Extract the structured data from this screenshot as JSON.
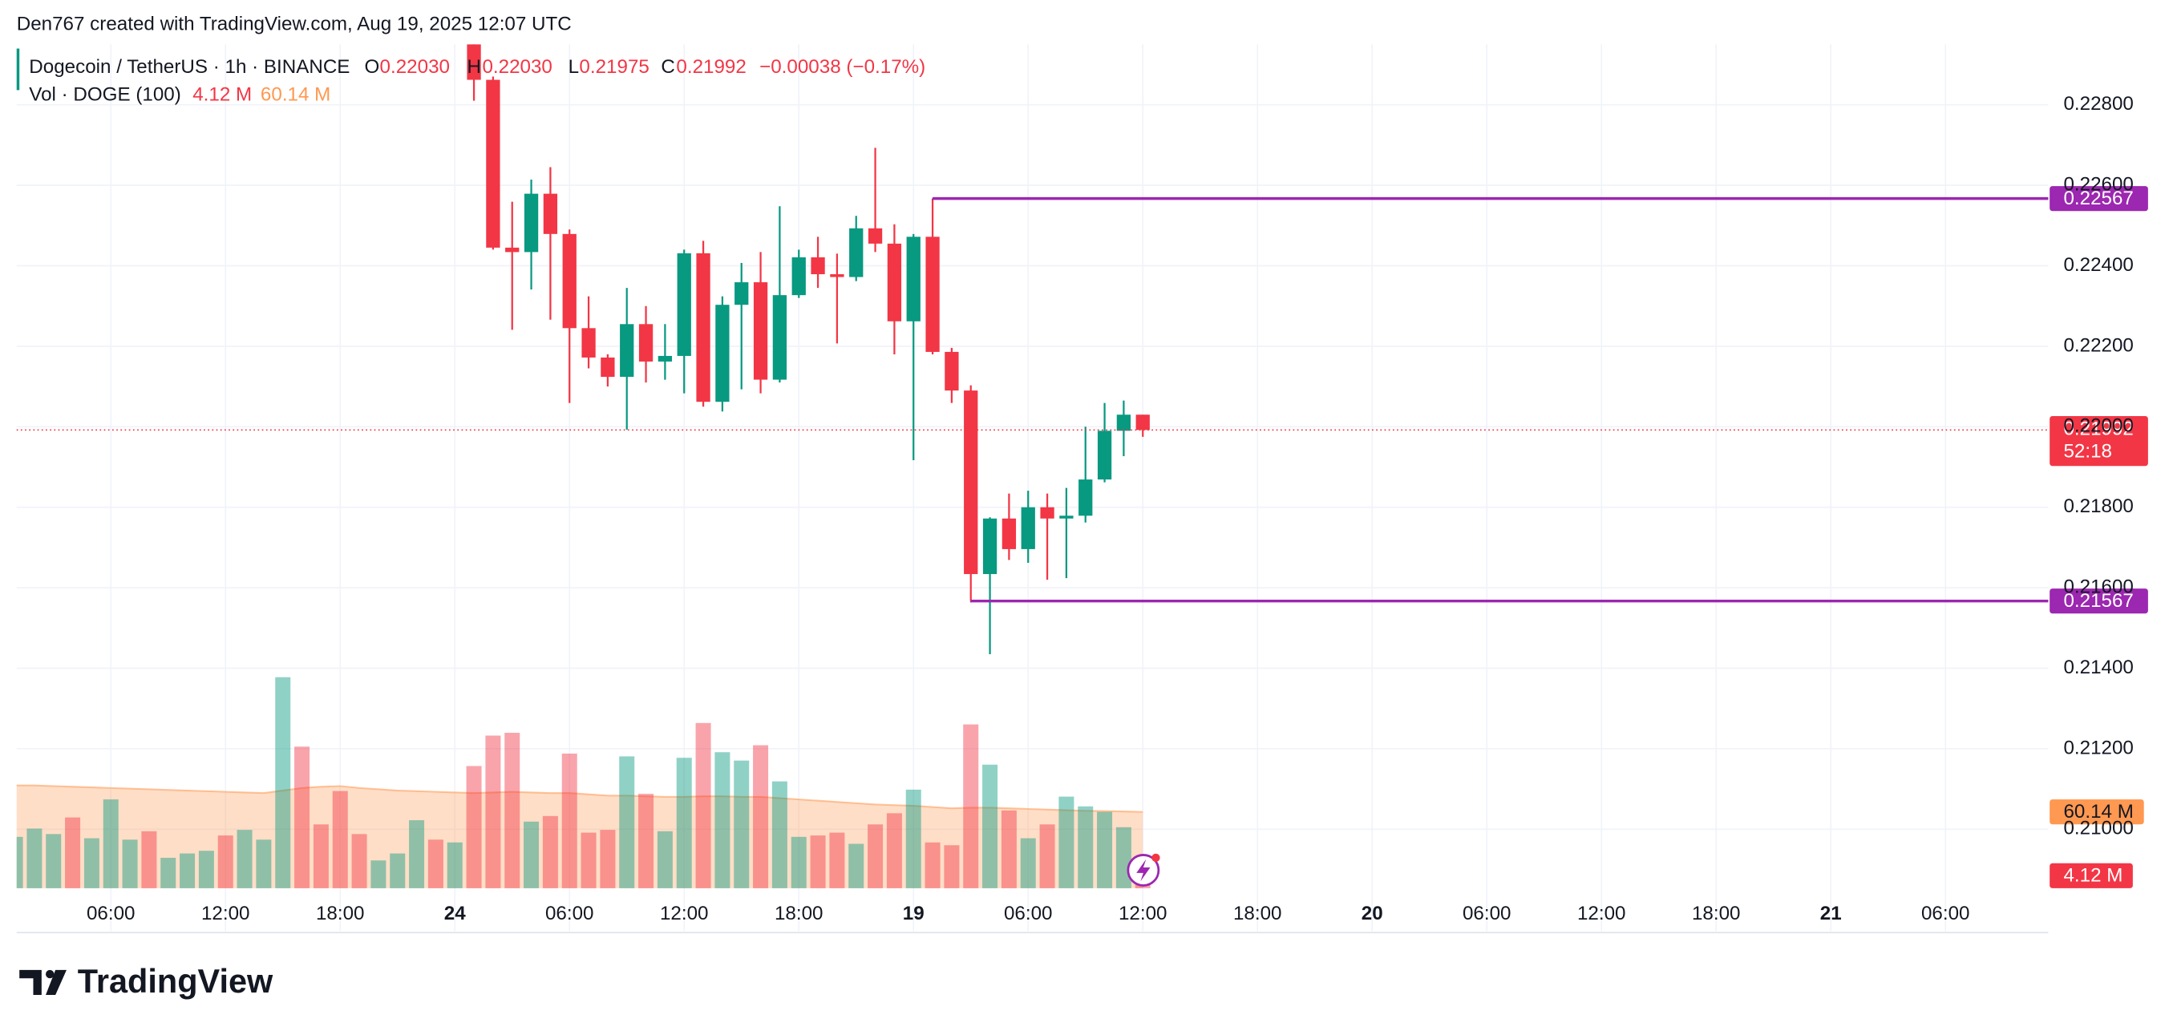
{
  "header": {
    "credit": "Den767 created with TradingView.com, Aug 19, 2025 12:07 UTC"
  },
  "chart_data": {
    "type": "candlestick",
    "symbol": "Dogecoin / TetherUS · 1h · BINANCE",
    "legend": {
      "o_label": "O",
      "o": "0.22030",
      "h_label": "H",
      "h": "0.22030",
      "l_label": "L",
      "l": "0.21975",
      "c_label": "C",
      "c": "0.21992",
      "change": "−0.00038 (−0.17%)"
    },
    "x": [
      25,
      26,
      27,
      28,
      29,
      30,
      31,
      32,
      33,
      34,
      35,
      36,
      37,
      38,
      39,
      40,
      41,
      42,
      43,
      44,
      45,
      46,
      47,
      48,
      49,
      50,
      51,
      52,
      53,
      54,
      55,
      56,
      57,
      58,
      59,
      60
    ],
    "open": [
      0.23,
      0.22862,
      0.22445,
      0.22434,
      0.22579,
      0.22479,
      0.22245,
      0.22172,
      0.22124,
      0.22255,
      0.22162,
      0.22176,
      0.22431,
      0.22062,
      0.22303,
      0.22359,
      0.22117,
      0.22327,
      0.22421,
      0.22379,
      0.22372,
      0.22493,
      0.22455,
      0.22262,
      0.22472,
      0.22186,
      0.2209,
      0.21634,
      0.21772,
      0.21696,
      0.218,
      0.21772,
      0.21779,
      0.21869,
      0.2199,
      0.2203
    ],
    "high": [
      0.2302,
      0.2287,
      0.22559,
      0.22614,
      0.22645,
      0.2249,
      0.22324,
      0.2218,
      0.22345,
      0.223,
      0.22255,
      0.2244,
      0.22462,
      0.22324,
      0.22407,
      0.22434,
      0.22548,
      0.2244,
      0.22472,
      0.2243,
      0.22524,
      0.22693,
      0.22503,
      0.22479,
      0.22567,
      0.22196,
      0.22103,
      0.21775,
      0.21834,
      0.21841,
      0.21834,
      0.21848,
      0.22,
      0.22059,
      0.22065,
      0.2203
    ],
    "low": [
      0.2281,
      0.2244,
      0.22241,
      0.22341,
      0.22266,
      0.22059,
      0.22145,
      0.221,
      0.21993,
      0.2211,
      0.22117,
      0.22083,
      0.2205,
      0.22038,
      0.22093,
      0.22083,
      0.2211,
      0.2232,
      0.22345,
      0.22207,
      0.22362,
      0.22434,
      0.2218,
      0.21917,
      0.2218,
      0.22059,
      0.21567,
      0.21435,
      0.21669,
      0.21662,
      0.2162,
      0.21624,
      0.21762,
      0.21862,
      0.21927,
      0.21975
    ],
    "close": [
      0.22862,
      0.22445,
      0.22434,
      0.22579,
      0.22479,
      0.22245,
      0.22172,
      0.22124,
      0.22255,
      0.22162,
      0.22176,
      0.22431,
      0.22062,
      0.22303,
      0.22359,
      0.22117,
      0.22327,
      0.22421,
      0.22379,
      0.22372,
      0.22493,
      0.22455,
      0.22262,
      0.22472,
      0.22186,
      0.2209,
      0.21634,
      0.21772,
      0.21696,
      0.218,
      0.21772,
      0.21779,
      0.21869,
      0.2199,
      0.2203,
      0.21992
    ],
    "up_color": "#089981",
    "down_color": "#f23645",
    "xlim": [
      1.07,
      107.38
    ],
    "xticks": [
      {
        "value": 6,
        "label": "06:00"
      },
      {
        "value": 12,
        "label": "12:00"
      },
      {
        "value": 18,
        "label": "18:00"
      },
      24,
      {
        "value": 30,
        "label": "06:00"
      },
      {
        "value": 36,
        "label": "12:00"
      },
      {
        "value": 42,
        "label": "18:00"
      },
      {
        "value": 48,
        "label": "19"
      },
      {
        "value": 54,
        "label": "06:00"
      },
      {
        "value": 60,
        "label": "12:00"
      },
      {
        "value": 66,
        "label": "18:00"
      },
      {
        "value": 72,
        "label": "20"
      },
      {
        "value": 78,
        "label": "06:00"
      },
      {
        "value": 84,
        "label": "12:00"
      },
      {
        "value": 90,
        "label": "18:00"
      },
      {
        "value": 96,
        "label": "21"
      },
      {
        "value": 102,
        "label": "06:00"
      }
    ],
    "ylim": [
      0.2085,
      0.2295
    ],
    "yticks": [
      {
        "value": 0.228,
        "label": "0.22800"
      },
      {
        "value": 0.226,
        "label": "0.22600"
      },
      {
        "value": 0.224,
        "label": "0.22400"
      },
      {
        "value": 0.222,
        "label": "0.22200"
      },
      {
        "value": 0.22,
        "label": "0.22000"
      },
      {
        "value": 0.218,
        "label": "0.21800"
      },
      {
        "value": 0.216,
        "label": "0.21600"
      },
      {
        "value": 0.214,
        "label": "0.21400"
      },
      {
        "value": 0.212,
        "label": "0.21200"
      },
      {
        "value": 0.21,
        "label": "0.21000"
      }
    ],
    "grid": true,
    "volume": {
      "name": "Vol · DOGE (100)",
      "x": [
        1,
        2,
        3,
        4,
        5,
        6,
        7,
        8,
        9,
        10,
        11,
        12,
        13,
        14,
        15,
        16,
        17,
        18,
        19,
        20,
        21,
        22,
        23,
        24,
        25,
        26,
        27,
        28,
        29,
        30,
        31,
        32,
        33,
        34,
        35,
        36,
        37,
        38,
        39,
        40,
        41,
        42,
        43,
        44,
        45,
        46,
        47,
        48,
        49,
        50,
        51,
        52,
        53,
        54,
        55,
        56,
        57,
        58,
        59,
        60
      ],
      "values": [
        40.5,
        47,
        42.7,
        55.8,
        39.4,
        70,
        38.3,
        44.9,
        24,
        27.4,
        29.5,
        41.6,
        46,
        38.3,
        166.3,
        111.6,
        50.3,
        76.6,
        42.7,
        21.9,
        27.4,
        53.6,
        38.3,
        36.1,
        96.3,
        120.3,
        122.5,
        52.5,
        56.9,
        106.1,
        43.8,
        46,
        103.9,
        74.4,
        44.9,
        102.8,
        130.2,
        107.2,
        100.6,
        112.7,
        84.2,
        40.5,
        41.6,
        43.8,
        35,
        50.3,
        59.1,
        77.7,
        36.1,
        33.9,
        129.1,
        97.4,
        61.3,
        39.4,
        50.3,
        72.2,
        64.5,
        60.2,
        48.1,
        4.12
      ],
      "value_label": "4.12 M",
      "directions": [
        "up",
        "up",
        "up",
        "down",
        "up",
        "up",
        "up",
        "down",
        "up",
        "up",
        "up",
        "down",
        "up",
        "up",
        "up",
        "down",
        "down",
        "down",
        "down",
        "up",
        "up",
        "up",
        "down",
        "up",
        "down",
        "down",
        "down",
        "up",
        "down",
        "down",
        "down",
        "down",
        "up",
        "down",
        "up",
        "up",
        "down",
        "up",
        "up",
        "down",
        "up",
        "up",
        "down",
        "down",
        "up",
        "down",
        "down",
        "up",
        "down",
        "down",
        "down",
        "up",
        "down",
        "up",
        "down",
        "up",
        "up",
        "up",
        "up",
        "down"
      ],
      "ma": [
        81,
        81,
        80.5,
        80,
        79.5,
        79,
        78.5,
        78,
        77.5,
        77,
        76.5,
        76,
        75.5,
        75,
        77,
        79,
        80,
        80.5,
        79,
        78,
        77,
        76.5,
        76,
        75.5,
        75,
        75.5,
        76,
        75.5,
        75,
        75,
        74,
        73,
        73,
        72.5,
        72,
        72,
        72.5,
        72.5,
        72,
        72,
        71,
        70,
        69,
        68,
        67,
        66,
        65.5,
        65,
        64,
        63,
        63.5,
        63.5,
        63,
        62.5,
        62,
        61.5,
        61,
        60.8,
        60.5,
        60.14
      ],
      "ma_label": "60.14 M",
      "ma_color": "#ff9850",
      "vlim": [
        0,
        190
      ]
    },
    "levels": [
      {
        "value": 0.22567,
        "label": "0.22567",
        "from": 49,
        "color": "#9c27b0"
      },
      {
        "value": 0.21567,
        "label": "0.21567",
        "from": 51,
        "color": "#9c27b0"
      }
    ],
    "last_price": {
      "value": 0.21992,
      "label": "0.21992",
      "countdown": "52:18"
    }
  },
  "footer": {
    "logo": "TradingView"
  }
}
